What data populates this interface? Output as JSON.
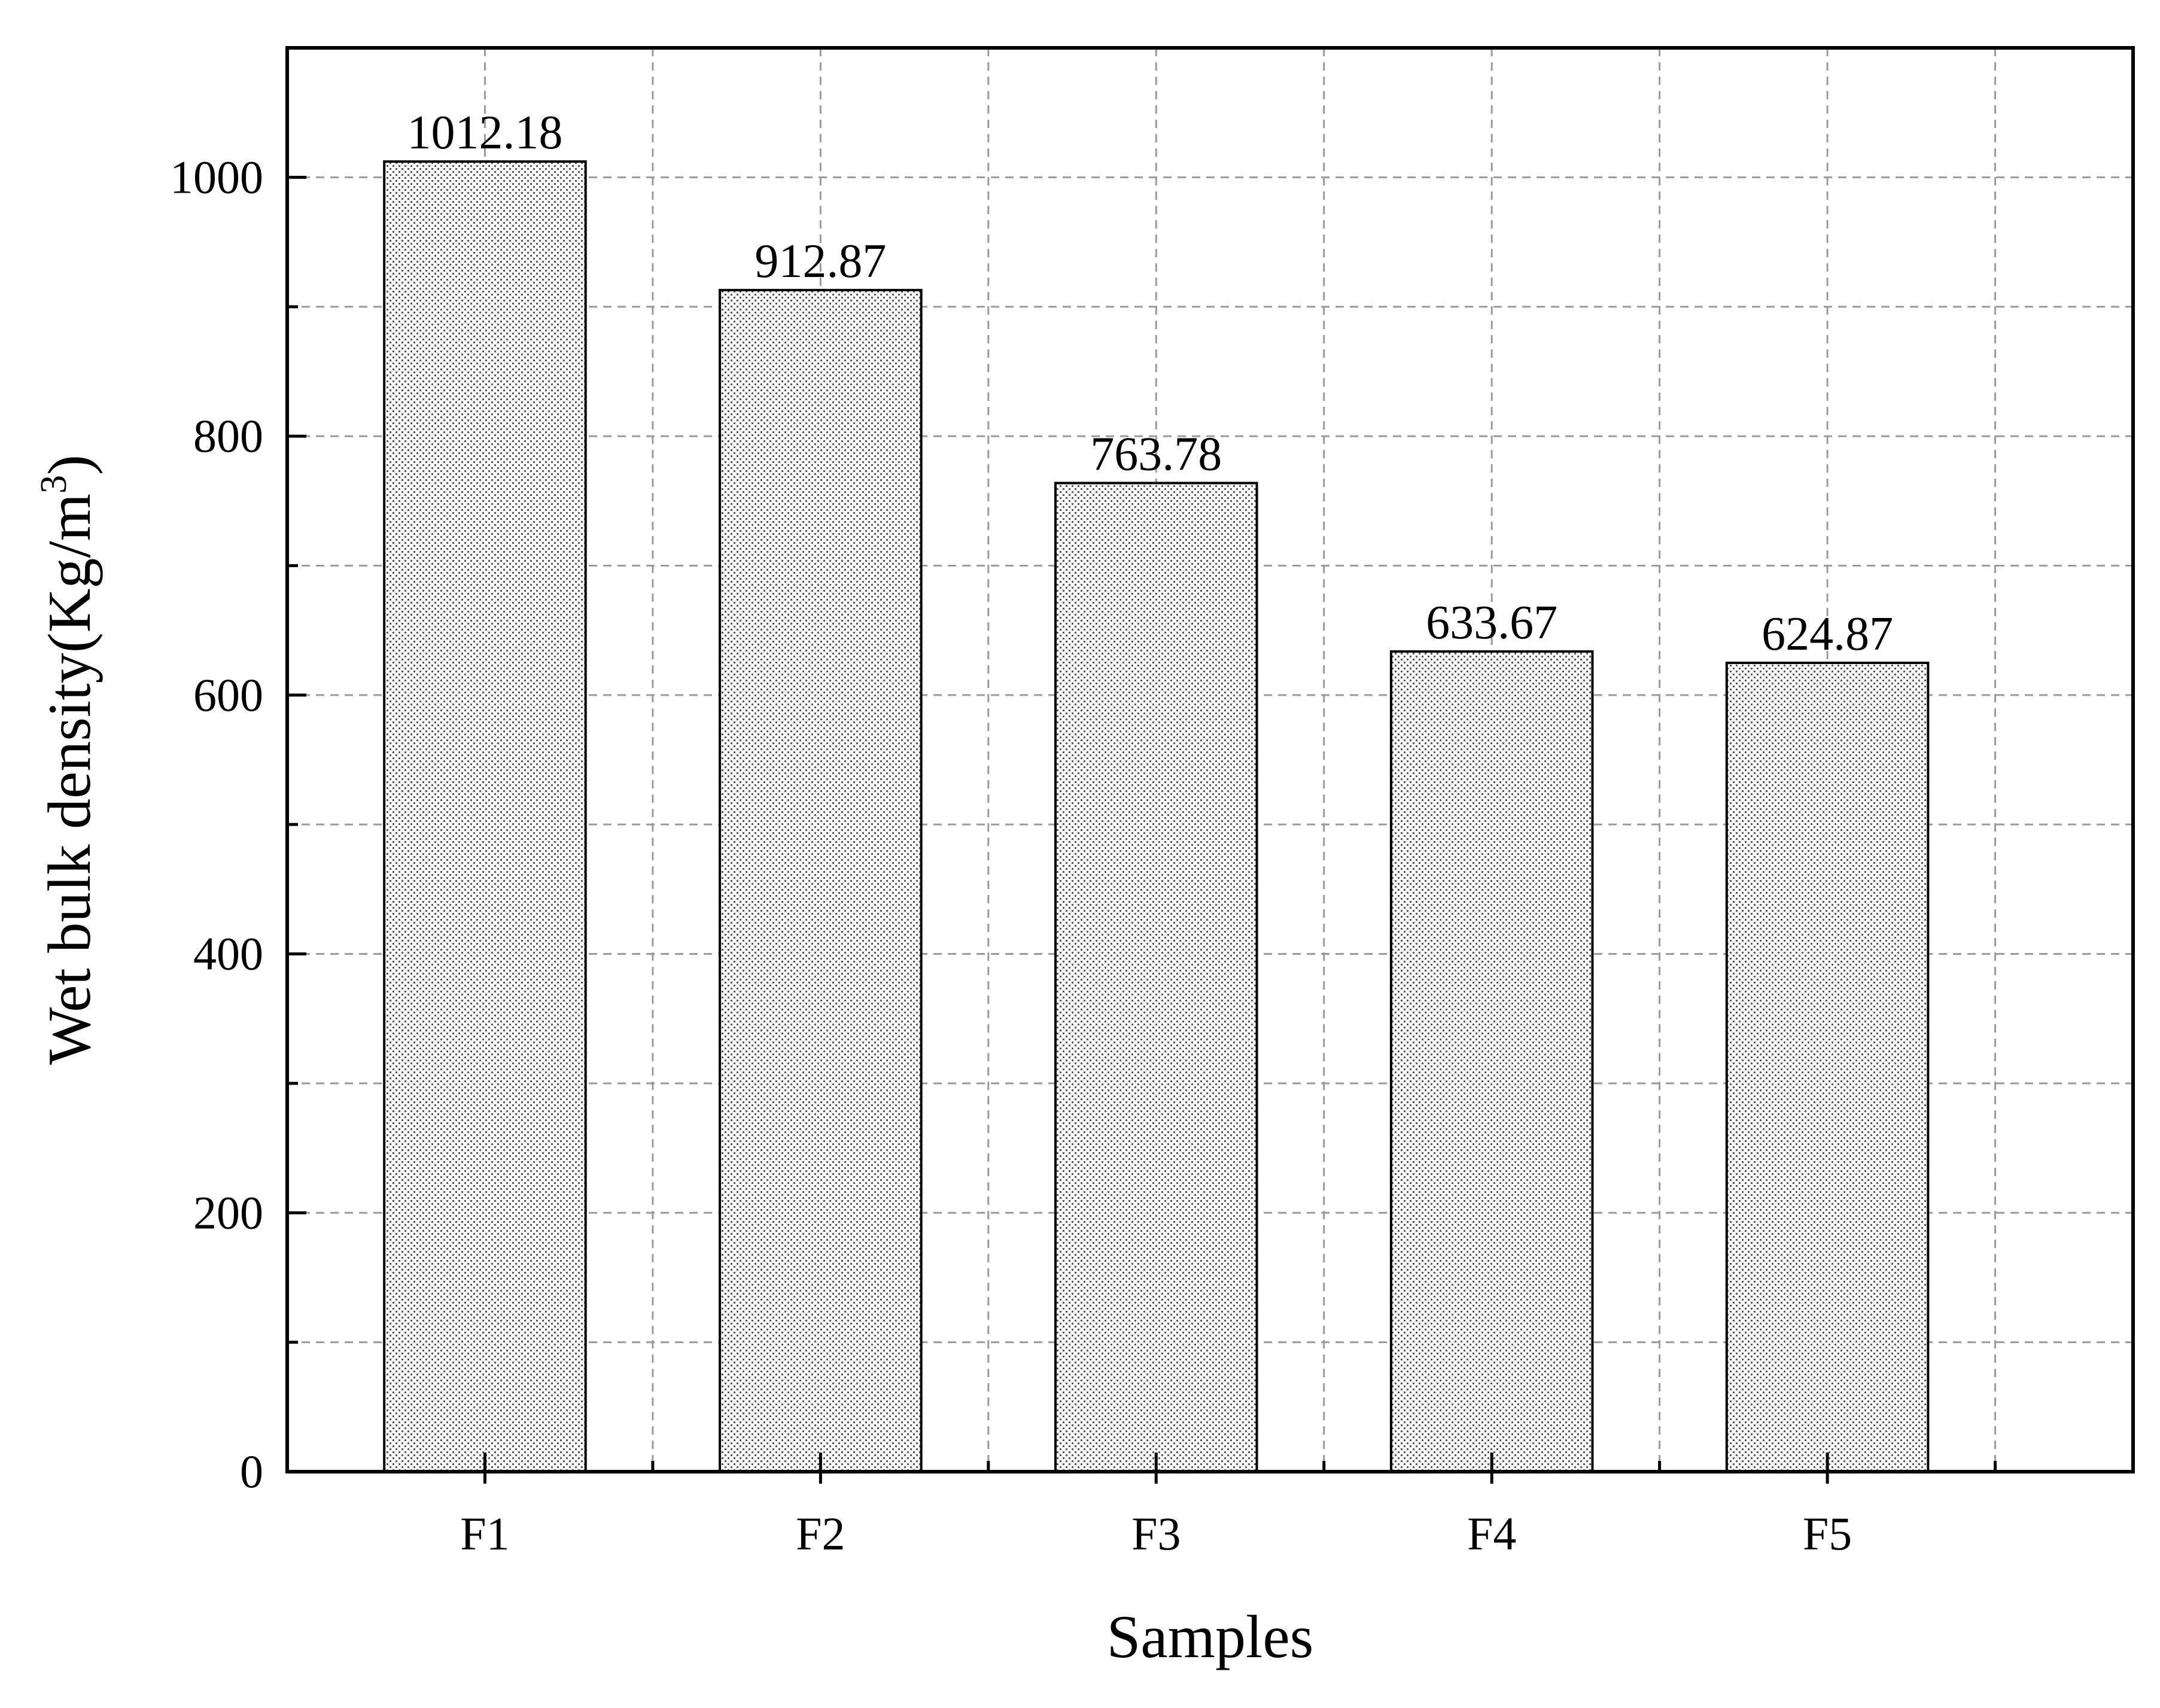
{
  "chart_data": {
    "type": "bar",
    "categories": [
      "F1",
      "F2",
      "F3",
      "F4",
      "F5"
    ],
    "values": [
      1012.18,
      912.87,
      763.78,
      633.67,
      624.87
    ],
    "data_labels": [
      "1012.18",
      "912.87",
      "763.78",
      "633.67",
      "624.87"
    ],
    "xlabel": "Samples",
    "ylabel": "Wet bulk density(Kg/m",
    "ylabel_superscript": "3",
    "ylabel_close": ")",
    "ylim": [
      0,
      1100
    ],
    "yticks": [
      0,
      200,
      400,
      600,
      800,
      1000
    ],
    "ytick_labels": [
      "0",
      "200",
      "400",
      "600",
      "800",
      "1000"
    ],
    "grid": true,
    "legend": "none",
    "bar_fill": "dotted stipple",
    "colors": {
      "bar_fill": "#ffffff",
      "bar_dots": "#555555",
      "grid": "#9a9a9a",
      "axis": "#000000"
    }
  }
}
